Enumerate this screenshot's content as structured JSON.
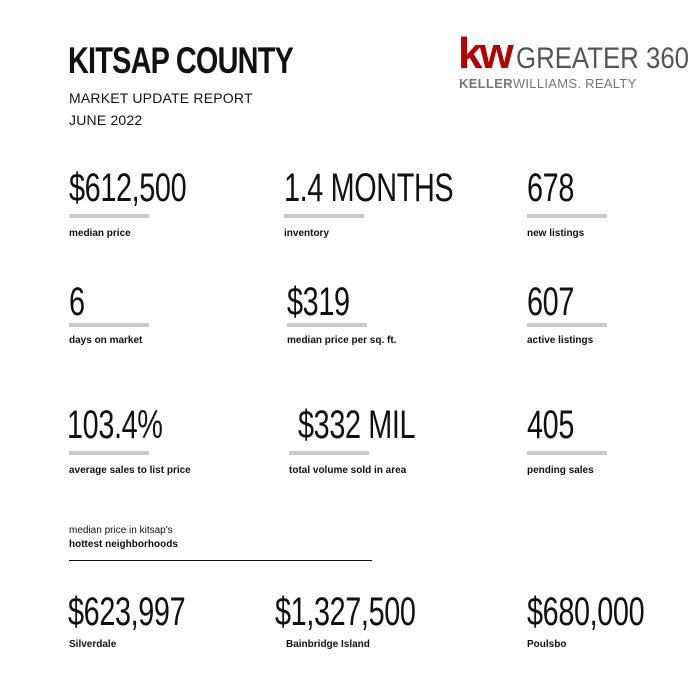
{
  "header": {
    "title": "KITSAP COUNTY",
    "subtitle": "MARKET UPDATE REPORT",
    "date": "JUNE 2022"
  },
  "logo": {
    "mark": "kw",
    "name": "GREATER 360",
    "company_bold": "KELLER",
    "company_rest": "WILLIAMS. REALTY",
    "brand_color": "#b40101"
  },
  "stats": [
    {
      "value": "$612,500",
      "label": "median price"
    },
    {
      "value": "1.4 MONTHS",
      "label": "inventory"
    },
    {
      "value": "678",
      "label": "new listings"
    },
    {
      "value": "6",
      "label": "days on market"
    },
    {
      "value": "$319",
      "label": "median price per sq. ft."
    },
    {
      "value": "607",
      "label": "active listings"
    },
    {
      "value": "103.4%",
      "label": "average sales to list price"
    },
    {
      "value": "$332 MIL",
      "label": "total volume sold in area"
    },
    {
      "value": "405",
      "label": "pending sales"
    }
  ],
  "neighborhoods": {
    "heading_line1": "median price in kitsap's",
    "heading_line2": "hottest neighborhoods",
    "items": [
      {
        "value": "$623,997",
        "label": "Silverdale"
      },
      {
        "value": "$1,327,500",
        "label": "Bainbridge Island"
      },
      {
        "value": "$680,000",
        "label": "Poulsbo"
      }
    ]
  }
}
